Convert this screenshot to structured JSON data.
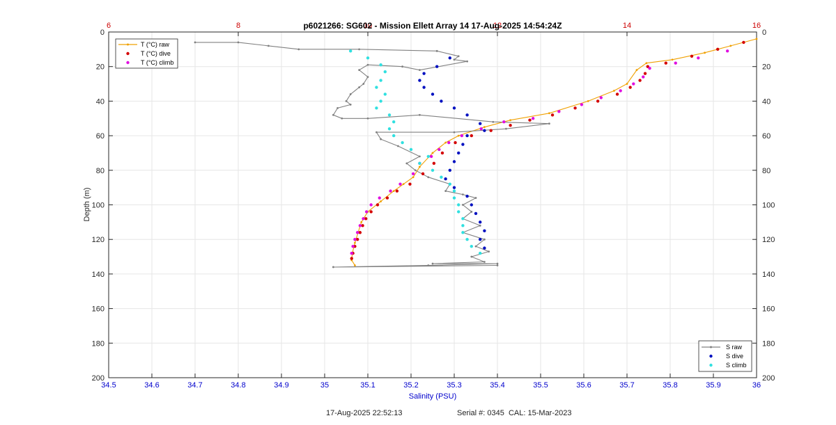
{
  "chart_data": {
    "type": "line",
    "title": "p6021266: SG602 - Mission Ellett Array 14 17-Aug-2025 14:54:24Z",
    "xlabel": "Salinity (PSU)",
    "ylabel": "Depth (m)",
    "xlim": [
      34.5,
      36
    ],
    "ylim": [
      0,
      200
    ],
    "y_reversed": true,
    "x_ticks": [
      "34.5",
      "34.6",
      "34.7",
      "34.8",
      "34.9",
      "35",
      "35.1",
      "35.2",
      "35.3",
      "35.4",
      "35.5",
      "35.6",
      "35.7",
      "35.8",
      "35.9",
      "36"
    ],
    "y_ticks": [
      "0",
      "20",
      "40",
      "60",
      "80",
      "100",
      "120",
      "140",
      "160",
      "180",
      "200"
    ],
    "x2lim": [
      6,
      16
    ],
    "x2_ticks": [
      "6",
      "8",
      "10",
      "12",
      "14",
      "16"
    ],
    "grid": true,
    "colors": {
      "t_axis": "#cc0000",
      "s_axis": "#0000cc",
      "t_raw": "#f0a000",
      "t_dive": "#d40000",
      "t_climb": "#e010e0",
      "s_raw": "#808080",
      "s_dive": "#0010c0",
      "s_climb": "#30e0e0"
    },
    "legend_top": {
      "position": "top-left",
      "entries": [
        "T (°C) raw",
        "T (°C) dive",
        "T (°C) climb"
      ]
    },
    "legend_bottom": {
      "position": "bottom-right",
      "entries": [
        "S raw",
        "S dive",
        "S climb"
      ]
    },
    "series": [
      {
        "name": "T (°C) raw",
        "axis": "temperature",
        "style": "line-dot",
        "points": [
          [
            16,
            4
          ],
          [
            15.6,
            8
          ],
          [
            15.2,
            12
          ],
          [
            14.7,
            16
          ],
          [
            14.3,
            18
          ],
          [
            14.15,
            22
          ],
          [
            14.0,
            30
          ],
          [
            13.8,
            34
          ],
          [
            13.4,
            40
          ],
          [
            12.8,
            47
          ],
          [
            12.2,
            51
          ],
          [
            11.8,
            55
          ],
          [
            11.4,
            60
          ],
          [
            11.2,
            64
          ],
          [
            11.0,
            70
          ],
          [
            10.8,
            78
          ],
          [
            10.7,
            84
          ],
          [
            10.55,
            88
          ],
          [
            10.4,
            92
          ],
          [
            10.2,
            98
          ],
          [
            10.0,
            104
          ],
          [
            9.9,
            110
          ],
          [
            9.85,
            116
          ],
          [
            9.8,
            122
          ],
          [
            9.76,
            128
          ],
          [
            9.75,
            132
          ],
          [
            9.8,
            135
          ]
        ]
      },
      {
        "name": "T (°C) dive",
        "axis": "temperature",
        "style": "dots",
        "points": [
          [
            15.8,
            6
          ],
          [
            15.4,
            10
          ],
          [
            15.0,
            14
          ],
          [
            14.6,
            18
          ],
          [
            14.32,
            20
          ],
          [
            14.28,
            24
          ],
          [
            14.2,
            28
          ],
          [
            14.05,
            32
          ],
          [
            13.85,
            36
          ],
          [
            13.55,
            40
          ],
          [
            13.2,
            44
          ],
          [
            12.85,
            48
          ],
          [
            12.5,
            51
          ],
          [
            12.2,
            54
          ],
          [
            11.9,
            57
          ],
          [
            11.6,
            60
          ],
          [
            11.35,
            64
          ],
          [
            11.15,
            70
          ],
          [
            11.02,
            76
          ],
          [
            10.85,
            82
          ],
          [
            10.65,
            88
          ],
          [
            10.45,
            92
          ],
          [
            10.3,
            96
          ],
          [
            10.15,
            100
          ],
          [
            10.05,
            104
          ],
          [
            9.97,
            108
          ],
          [
            9.92,
            112
          ],
          [
            9.88,
            116
          ],
          [
            9.84,
            120
          ],
          [
            9.8,
            124
          ],
          [
            9.77,
            128
          ],
          [
            9.75,
            131
          ]
        ]
      },
      {
        "name": "T (°C) climb",
        "axis": "temperature",
        "style": "dots",
        "points": [
          [
            15.55,
            11
          ],
          [
            15.1,
            15
          ],
          [
            14.75,
            18
          ],
          [
            14.35,
            21
          ],
          [
            14.25,
            26
          ],
          [
            14.1,
            30
          ],
          [
            13.9,
            34
          ],
          [
            13.6,
            38
          ],
          [
            13.3,
            42
          ],
          [
            12.95,
            46
          ],
          [
            12.55,
            50
          ],
          [
            12.1,
            52
          ],
          [
            11.75,
            56
          ],
          [
            11.45,
            60
          ],
          [
            11.25,
            64
          ],
          [
            11.1,
            68
          ],
          [
            10.98,
            72
          ],
          [
            10.8,
            76
          ],
          [
            10.7,
            82
          ],
          [
            10.5,
            88
          ],
          [
            10.35,
            92
          ],
          [
            10.18,
            96
          ],
          [
            10.05,
            100
          ],
          [
            9.98,
            104
          ],
          [
            9.93,
            108
          ],
          [
            9.88,
            112
          ],
          [
            9.84,
            116
          ],
          [
            9.8,
            120
          ],
          [
            9.77,
            124
          ],
          [
            9.75,
            128
          ]
        ]
      },
      {
        "name": "S raw",
        "axis": "salinity",
        "style": "line-dot",
        "points": [
          [
            34.7,
            6
          ],
          [
            34.8,
            6
          ],
          [
            34.87,
            8
          ],
          [
            34.94,
            10
          ],
          [
            35.08,
            10
          ],
          [
            35.26,
            11
          ],
          [
            35.31,
            14
          ],
          [
            35.3,
            16
          ],
          [
            35.33,
            17
          ],
          [
            35.22,
            22
          ],
          [
            35.18,
            20
          ],
          [
            35.1,
            19
          ],
          [
            35.08,
            22
          ],
          [
            35.1,
            26
          ],
          [
            35.09,
            30
          ],
          [
            35.08,
            32
          ],
          [
            35.06,
            36
          ],
          [
            35.05,
            40
          ],
          [
            35.06,
            42
          ],
          [
            35.03,
            44
          ],
          [
            35.02,
            48
          ],
          [
            35.04,
            50
          ],
          [
            35.1,
            50
          ],
          [
            35.22,
            48
          ],
          [
            35.39,
            52
          ],
          [
            35.52,
            53
          ],
          [
            35.42,
            56
          ],
          [
            35.3,
            58
          ],
          [
            35.12,
            58
          ],
          [
            35.13,
            62
          ],
          [
            35.17,
            66
          ],
          [
            35.22,
            72
          ],
          [
            35.19,
            76
          ],
          [
            35.21,
            80
          ],
          [
            35.24,
            84
          ],
          [
            35.29,
            88
          ],
          [
            35.28,
            92
          ],
          [
            35.32,
            94
          ],
          [
            35.35,
            96
          ],
          [
            35.32,
            100
          ],
          [
            35.34,
            104
          ],
          [
            35.32,
            108
          ],
          [
            35.36,
            112
          ],
          [
            35.32,
            116
          ],
          [
            35.37,
            120
          ],
          [
            35.35,
            124
          ],
          [
            35.38,
            127
          ],
          [
            35.34,
            130
          ],
          [
            35.37,
            133
          ],
          [
            35.25,
            134
          ],
          [
            35.4,
            134
          ],
          [
            35.24,
            135
          ],
          [
            35.02,
            136
          ],
          [
            35.4,
            135
          ]
        ]
      },
      {
        "name": "S dive",
        "axis": "salinity",
        "style": "dots",
        "points": [
          [
            35.29,
            15
          ],
          [
            35.26,
            20
          ],
          [
            35.23,
            24
          ],
          [
            35.22,
            28
          ],
          [
            35.23,
            32
          ],
          [
            35.25,
            36
          ],
          [
            35.27,
            40
          ],
          [
            35.3,
            44
          ],
          [
            35.33,
            48
          ],
          [
            35.36,
            53
          ],
          [
            35.37,
            57
          ],
          [
            35.33,
            60
          ],
          [
            35.32,
            65
          ],
          [
            35.31,
            70
          ],
          [
            35.3,
            75
          ],
          [
            35.29,
            80
          ],
          [
            35.28,
            85
          ],
          [
            35.3,
            90
          ],
          [
            35.33,
            95
          ],
          [
            35.34,
            100
          ],
          [
            35.35,
            105
          ],
          [
            35.36,
            110
          ],
          [
            35.37,
            115
          ],
          [
            35.36,
            120
          ],
          [
            35.37,
            125
          ]
        ]
      },
      {
        "name": "S climb",
        "axis": "salinity",
        "style": "dots",
        "points": [
          [
            35.06,
            11
          ],
          [
            35.1,
            15
          ],
          [
            35.13,
            19
          ],
          [
            35.14,
            23
          ],
          [
            35.13,
            28
          ],
          [
            35.12,
            32
          ],
          [
            35.14,
            36
          ],
          [
            35.13,
            40
          ],
          [
            35.12,
            44
          ],
          [
            35.15,
            48
          ],
          [
            35.16,
            52
          ],
          [
            35.15,
            56
          ],
          [
            35.16,
            60
          ],
          [
            35.18,
            64
          ],
          [
            35.2,
            68
          ],
          [
            35.24,
            72
          ],
          [
            35.22,
            76
          ],
          [
            35.25,
            80
          ],
          [
            35.27,
            84
          ],
          [
            35.29,
            88
          ],
          [
            35.3,
            92
          ],
          [
            35.3,
            96
          ],
          [
            35.31,
            100
          ],
          [
            35.31,
            104
          ],
          [
            35.32,
            108
          ],
          [
            35.32,
            112
          ],
          [
            35.32,
            116
          ],
          [
            35.33,
            120
          ],
          [
            35.34,
            124
          ],
          [
            35.36,
            128
          ]
        ]
      }
    ]
  },
  "footer": {
    "timestamp": "17-Aug-2025 22:52:13",
    "serial": "Serial #: 0345  CAL: 15-Mar-2023"
  }
}
